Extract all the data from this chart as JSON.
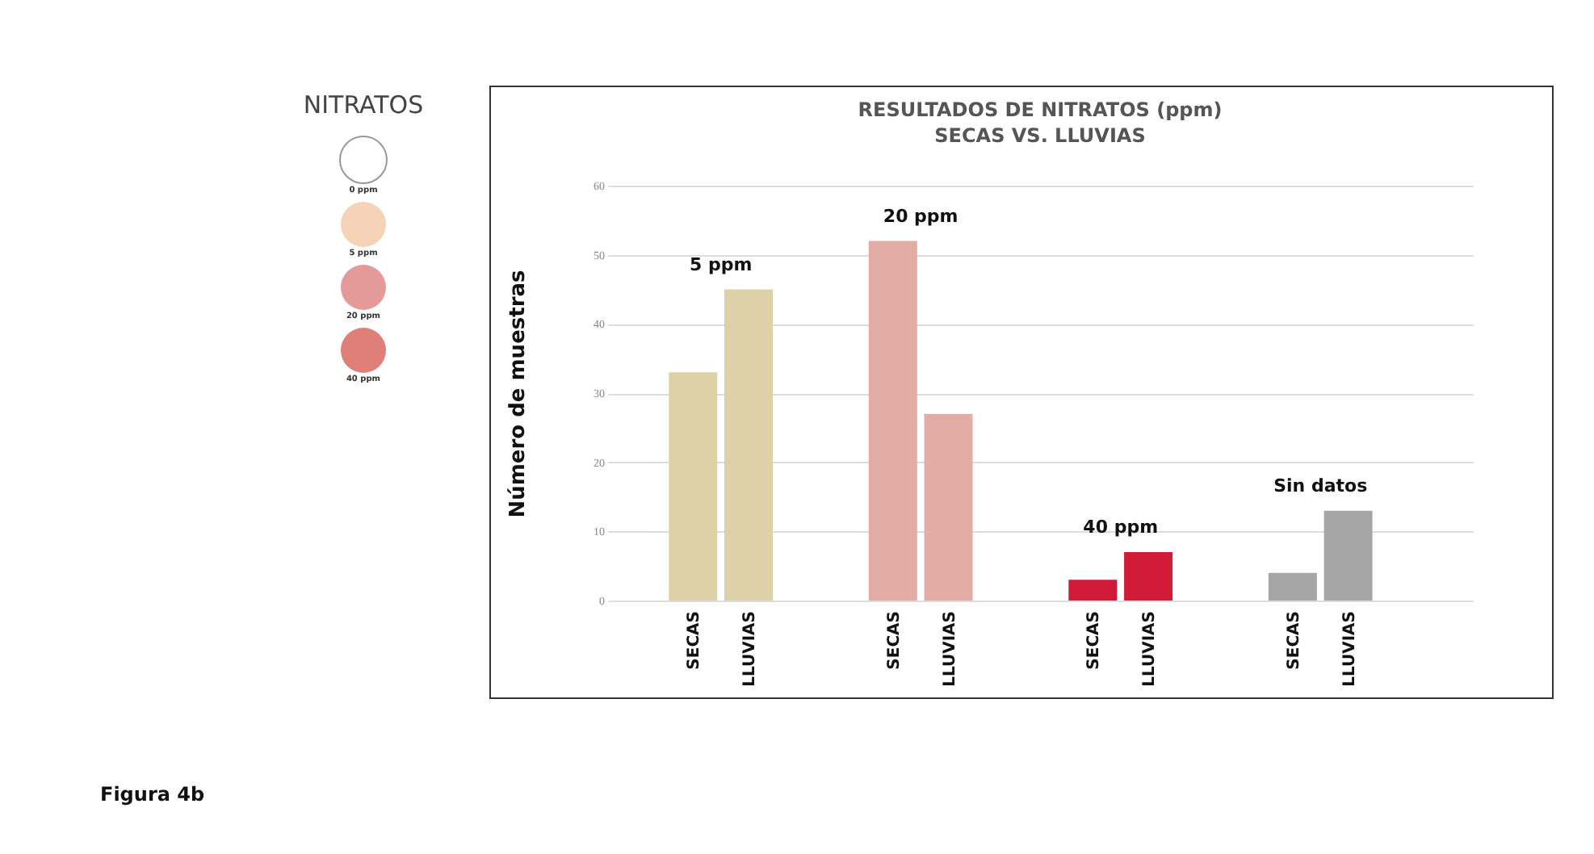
{
  "chart_data": {
    "type": "bar",
    "title": "RESULTADOS DE NITRATOS (ppm)",
    "subtitle": "SECAS VS. LLUVIAS",
    "ylabel": "Número de muestras",
    "categories": [
      "SECAS",
      "LLUVIAS",
      "SECAS",
      "LLUVIAS",
      "SECAS",
      "LLUVIAS",
      "SECAS",
      "LLUVIAS"
    ],
    "values": [
      33,
      45,
      52,
      27,
      3,
      7,
      4,
      13
    ],
    "colors": [
      "#ddd1a7",
      "#ddd1a7",
      "#e3ada6",
      "#e3ada6",
      "#d11a38",
      "#d11a38",
      "#a6a6a6",
      "#a6a6a6"
    ],
    "ylim": [
      0,
      60
    ],
    "yticks": [
      0,
      10,
      20,
      30,
      40,
      50,
      60
    ],
    "grid": "y",
    "annotations": [
      "5 ppm",
      "20 ppm",
      "40 ppm",
      "Sin datos",
      "NITRATOS",
      "0 ppm",
      "5 ppm",
      "20 ppm",
      "40 ppm",
      "Figura 4b"
    ]
  }
}
